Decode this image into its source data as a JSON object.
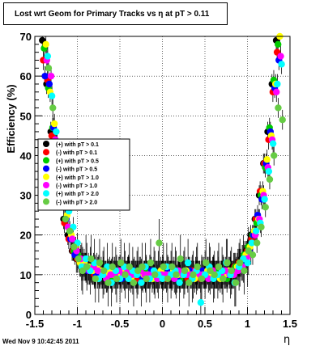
{
  "chart_data": {
    "type": "scatter",
    "title": "Lost wrt Geom for Primary Tracks vs   η at pT > 0.11",
    "xlabel": "η",
    "ylabel": "Efficiency (%)",
    "xlim": [
      -1.5,
      1.5
    ],
    "ylim": [
      0,
      70
    ],
    "xticks": [
      -1.5,
      -1,
      -0.5,
      0,
      0.5,
      1,
      1.5
    ],
    "yticks": [
      0,
      10,
      20,
      30,
      40,
      50,
      60,
      70
    ],
    "grid": true,
    "legend_position": "left",
    "eta_bins": [
      -1.375,
      -1.325,
      -1.275,
      -1.225,
      -1.175,
      -1.125,
      -1.075,
      -1.025,
      -0.975,
      -0.925,
      -0.875,
      -0.825,
      -0.775,
      -0.725,
      -0.675,
      -0.625,
      -0.575,
      -0.525,
      -0.475,
      -0.425,
      -0.375,
      -0.325,
      -0.275,
      -0.225,
      -0.175,
      -0.125,
      -0.075,
      -0.025,
      0.025,
      0.075,
      0.125,
      0.175,
      0.225,
      0.275,
      0.325,
      0.375,
      0.425,
      0.475,
      0.525,
      0.575,
      0.625,
      0.675,
      0.725,
      0.775,
      0.825,
      0.875,
      0.925,
      0.975,
      1.025,
      1.075,
      1.125,
      1.175,
      1.225,
      1.275,
      1.325,
      1.375
    ],
    "series": [
      {
        "name": "(+) with pT > 0.1",
        "color": "#000000",
        "values": [
          69,
          58,
          46,
          38,
          30,
          24,
          20,
          16,
          14,
          13,
          12,
          11,
          11,
          10,
          10,
          10,
          10,
          11,
          11,
          10,
          10,
          10,
          10,
          10,
          10,
          10,
          10,
          10,
          10,
          10,
          10,
          10,
          10,
          10,
          10,
          10,
          10,
          10,
          11,
          11,
          10,
          10,
          10,
          10,
          11,
          12,
          13,
          14,
          16,
          20,
          24,
          30,
          38,
          46,
          58,
          69
        ]
      },
      {
        "name": "(-) with pT > 0.1",
        "color": "#ff0000",
        "values": [
          64,
          59,
          45,
          37,
          30,
          23,
          19,
          16,
          14,
          12,
          12,
          11,
          10,
          11,
          10,
          9,
          10,
          10,
          10,
          11,
          11,
          10,
          9,
          10,
          9,
          10,
          11,
          10,
          10,
          9,
          10,
          11,
          10,
          10,
          9,
          11,
          10,
          9,
          10,
          10,
          11,
          10,
          10,
          10,
          11,
          12,
          13,
          14,
          16,
          19,
          24,
          31,
          38,
          44,
          56,
          66
        ]
      },
      {
        "name": "(+) with pT > 0.5",
        "color": "#00cc00",
        "values": [
          67,
          57,
          47,
          39,
          29,
          24,
          21,
          16,
          15,
          13,
          12,
          12,
          11,
          10,
          11,
          10,
          9,
          11,
          10,
          10,
          11,
          10,
          10,
          10,
          11,
          10,
          9,
          10,
          11,
          10,
          10,
          10,
          9,
          10,
          11,
          10,
          11,
          10,
          10,
          11,
          10,
          11,
          10,
          9,
          10,
          12,
          13,
          15,
          17,
          20,
          23,
          30,
          37,
          47,
          59,
          68
        ]
      },
      {
        "name": "(-) with pT > 0.5",
        "color": "#0000ff",
        "values": [
          60,
          58,
          47,
          36,
          31,
          24,
          19,
          15,
          14,
          12,
          11,
          11,
          10,
          10,
          10,
          10,
          11,
          10,
          9,
          10,
          10,
          11,
          10,
          9,
          10,
          11,
          10,
          10,
          10,
          11,
          10,
          9,
          10,
          10,
          11,
          10,
          10,
          11,
          10,
          10,
          10,
          10,
          11,
          10,
          10,
          11,
          13,
          14,
          16,
          20,
          25,
          29,
          38,
          46,
          57,
          64
        ]
      },
      {
        "name": "(+) with pT > 1.0",
        "color": "#ffff00",
        "values": [
          68,
          56,
          48,
          38,
          29,
          25,
          20,
          17,
          13,
          13,
          12,
          11,
          12,
          11,
          10,
          11,
          10,
          10,
          11,
          10,
          9,
          10,
          11,
          10,
          10,
          9,
          10,
          11,
          10,
          10,
          11,
          10,
          10,
          11,
          10,
          9,
          10,
          10,
          11,
          10,
          10,
          9,
          10,
          11,
          10,
          12,
          12,
          15,
          17,
          21,
          24,
          31,
          39,
          45,
          58,
          70
        ]
      },
      {
        "name": "(-) with pT > 1.0",
        "color": "#ff00ff",
        "values": [
          64,
          60,
          44,
          37,
          30,
          22,
          19,
          16,
          14,
          12,
          11,
          12,
          11,
          10,
          9,
          10,
          10,
          11,
          10,
          11,
          10,
          10,
          11,
          10,
          10,
          10,
          9,
          10,
          10,
          10,
          9,
          11,
          10,
          10,
          10,
          11,
          10,
          10,
          9,
          11,
          10,
          10,
          11,
          10,
          10,
          11,
          12,
          14,
          15,
          20,
          24,
          30,
          37,
          44,
          56,
          65
        ]
      },
      {
        "name": "(+) with pT > 2.0",
        "color": "#00ffff",
        "values": [
          65,
          55,
          46,
          40,
          28,
          26,
          22,
          18,
          12,
          14,
          11,
          13,
          9,
          10,
          12,
          8,
          11,
          9,
          12,
          9,
          11,
          10,
          8,
          12,
          9,
          11,
          10,
          9,
          12,
          10,
          11,
          8,
          10,
          13,
          9,
          11,
          3,
          10,
          12,
          9,
          10,
          11,
          13,
          10,
          8,
          12,
          14,
          13,
          18,
          21,
          23,
          29,
          36,
          43,
          58,
          63
        ]
      },
      {
        "name": "(-) with pT > 2.0",
        "color": "#66cc44",
        "values": [
          62,
          52,
          43,
          35,
          24,
          21,
          17,
          14,
          11,
          12,
          14,
          9,
          13,
          11,
          8,
          12,
          9,
          13,
          10,
          12,
          8,
          11,
          12,
          9,
          13,
          10,
          18,
          12,
          9,
          12,
          10,
          14,
          11,
          8,
          10,
          12,
          9,
          13,
          11,
          10,
          12,
          9,
          13,
          11,
          8,
          13,
          11,
          16,
          15,
          18,
          22,
          27,
          34,
          40,
          52,
          49
        ]
      }
    ]
  },
  "timestamp": "Wed Nov  9 10:42:45 2011"
}
